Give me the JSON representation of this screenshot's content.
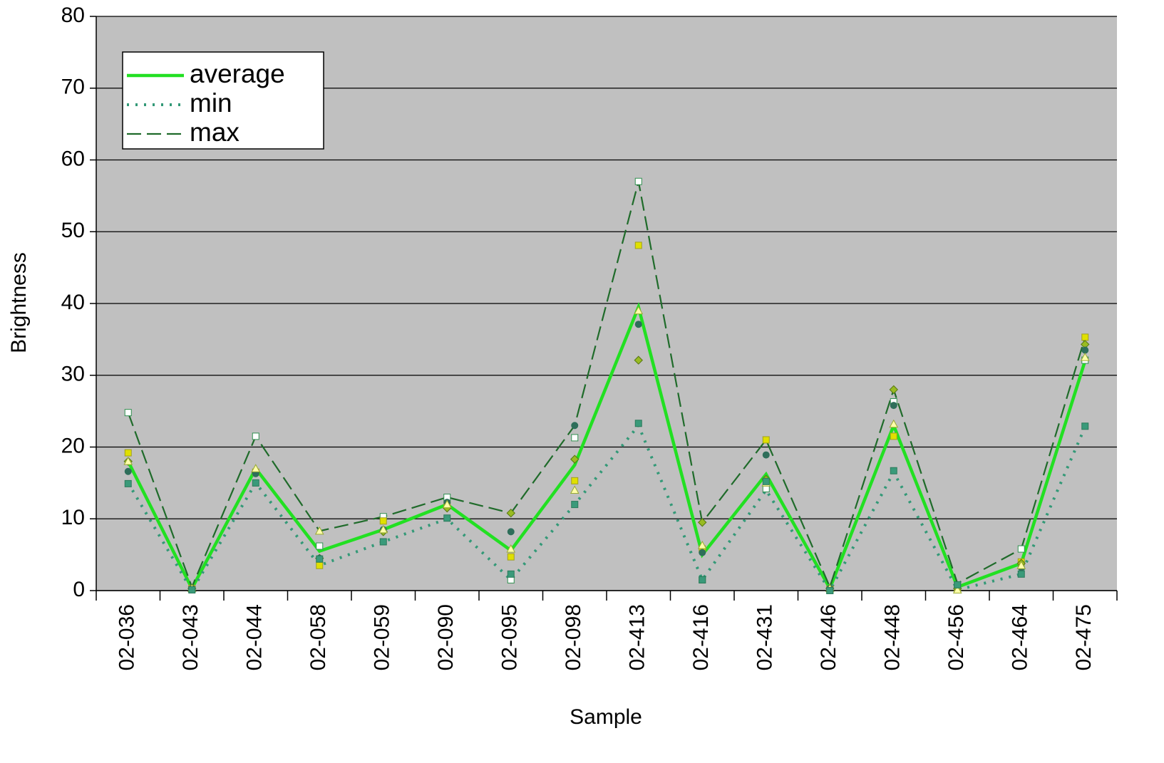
{
  "chart_data": {
    "type": "line",
    "x_label": "Sample",
    "y_label": "Brightness",
    "categories": [
      "02-036",
      "02-043",
      "02-044",
      "02-058",
      "02-059",
      "02-090",
      "02-095",
      "02-098",
      "02-413",
      "02-416",
      "02-431",
      "02-446",
      "02-448",
      "02-456",
      "02-464",
      "02-475"
    ],
    "ylim": [
      0,
      80
    ],
    "yticks": [
      0,
      10,
      20,
      30,
      40,
      50,
      60,
      70,
      80
    ],
    "grid": true,
    "background": "#c0c0c0",
    "legend": "top-left",
    "series": [
      {
        "name": "average",
        "color": "#22e022",
        "style": "solid",
        "values": [
          18,
          0.3,
          17,
          5.5,
          8.5,
          12,
          5.6,
          17.5,
          39.5,
          5,
          16.2,
          0.3,
          23,
          0.5,
          3.8,
          32
        ]
      },
      {
        "name": "min",
        "color": "#339977",
        "style": "dotted",
        "values": [
          15,
          0,
          15,
          3.5,
          6.8,
          10,
          1.5,
          12,
          23,
          1.5,
          14,
          0,
          16.5,
          0.1,
          2.3,
          22.8
        ]
      },
      {
        "name": "max",
        "color": "#1f6b2a",
        "style": "dashed",
        "values": [
          24.8,
          0.5,
          21.5,
          8.3,
          10.3,
          13,
          10.8,
          23,
          57,
          9.5,
          21,
          0.5,
          28,
          1,
          5.8,
          35.3
        ]
      },
      {
        "color": "#ffffff",
        "edge": "#2f8f4f",
        "marker": "square",
        "values": [
          24.8,
          0.2,
          21.5,
          6.2,
          10.3,
          13,
          1.5,
          21.3,
          57,
          1.5,
          14.2,
          0,
          26.3,
          0.5,
          5.8,
          32.1
        ]
      },
      {
        "color": "#e0e000",
        "edge": "#a0a020",
        "marker": "square",
        "values": [
          19.2,
          0.3,
          16.5,
          3.5,
          9.7,
          12,
          4.7,
          15.3,
          48.1,
          5.8,
          21,
          0.2,
          21.5,
          0.3,
          4,
          35.3
        ]
      },
      {
        "color": "#99bb22",
        "edge": "#557711",
        "marker": "diamond",
        "values": [
          18,
          0.3,
          16.5,
          4.5,
          8.2,
          11.5,
          10.8,
          18.3,
          32.1,
          9.5,
          15.5,
          0.3,
          28,
          0.3,
          3.8,
          34.3
        ]
      },
      {
        "color": "#2e6e5a",
        "edge": "#2e6e5a",
        "marker": "circle",
        "values": [
          16.6,
          0.3,
          16.3,
          4.5,
          8.5,
          12.3,
          8.2,
          23,
          37.1,
          5.3,
          18.9,
          0.3,
          25.8,
          0.8,
          3.2,
          33.5
        ]
      },
      {
        "color": "#ffffaa",
        "edge": "#99aa33",
        "marker": "triangle",
        "values": [
          18,
          0.3,
          17,
          8.3,
          8.5,
          12,
          5.8,
          14,
          39,
          6.3,
          15,
          0.3,
          23.2,
          0.1,
          3.5,
          32.5
        ]
      },
      {
        "color": "#3a9a7a",
        "edge": "#2a7a5a",
        "marker": "square",
        "values": [
          14.9,
          0.1,
          15,
          4.4,
          6.8,
          10.1,
          2.3,
          12,
          23.3,
          1.5,
          15.2,
          0,
          16.7,
          0.8,
          2.3,
          22.9
        ]
      }
    ]
  }
}
